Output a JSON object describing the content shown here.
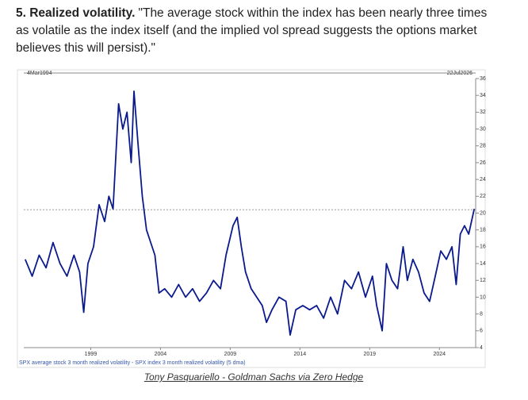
{
  "paragraph": {
    "lead": "5. Realized volatility.",
    "text": "\"The average stock within the index has been nearly three times as volatile as the index itself (and the implied vol spread suggests the options market believes this will persist).\""
  },
  "chart_data": {
    "type": "line",
    "start_label": "4Mar1994",
    "end_label": "22Jul2026",
    "footnote": "SPX average stock 3 month realized volatility - SPX index 3 month realized volatility (5 dma)",
    "x": [
      1994.3,
      1994.8,
      1995.3,
      1995.8,
      1996.3,
      1996.8,
      1997.3,
      1997.8,
      1998.2,
      1998.5,
      1998.8,
      1999.2,
      1999.6,
      2000.0,
      2000.3,
      2000.6,
      2001.0,
      2001.3,
      2001.6,
      2001.9,
      2002.1,
      2002.4,
      2002.7,
      2003.0,
      2003.3,
      2003.6,
      2003.9,
      2004.3,
      2004.8,
      2005.3,
      2005.8,
      2006.3,
      2006.8,
      2007.3,
      2007.8,
      2008.3,
      2008.7,
      2009.2,
      2009.5,
      2009.8,
      2010.1,
      2010.5,
      2010.9,
      2011.3,
      2011.6,
      2012.0,
      2012.5,
      2013.0,
      2013.3,
      2013.7,
      2014.2,
      2014.7,
      2015.2,
      2015.7,
      2016.2,
      2016.7,
      2017.2,
      2017.7,
      2018.2,
      2018.7,
      2019.2,
      2019.5,
      2019.9,
      2020.2,
      2020.6,
      2021.0,
      2021.4,
      2021.7,
      2022.1,
      2022.5,
      2022.9,
      2023.3,
      2023.7,
      2024.1,
      2024.5,
      2024.9,
      2025.2,
      2025.5,
      2025.8,
      2026.1,
      2026.5
    ],
    "series": [
      {
        "color": "#0a1a8c",
        "values": [
          14.5,
          12.5,
          15,
          13.5,
          16.5,
          14,
          12.5,
          15,
          13,
          8.2,
          14,
          16,
          21,
          19,
          22,
          20.5,
          33,
          30,
          32,
          26,
          34.5,
          28,
          22,
          18,
          16.5,
          15,
          10.5,
          11,
          10,
          11.5,
          10,
          11,
          9.5,
          10.5,
          12,
          11,
          15,
          18.5,
          19.5,
          16,
          13,
          11,
          10,
          9,
          7,
          8.5,
          10,
          9.5,
          5.5,
          8.5,
          9,
          8.5,
          9,
          7.5,
          10,
          8,
          12,
          11,
          13,
          10,
          12.5,
          9,
          6,
          14,
          12,
          11,
          16,
          12,
          14.5,
          13,
          10.5,
          9.5,
          12.5,
          15.5,
          14.5,
          16,
          11.5,
          17.5,
          18.5,
          17.5,
          20.5
        ]
      }
    ],
    "hline": 20.4,
    "xlim": [
      1994.2,
      2026.6
    ],
    "xticks": [
      1999,
      2004,
      2009,
      2014,
      2019,
      2024
    ],
    "ylim": [
      4,
      36
    ],
    "yticks": [
      4,
      6,
      8,
      10,
      12,
      14,
      16,
      18,
      20,
      22,
      24,
      26,
      28,
      30,
      32,
      34,
      36
    ]
  },
  "caption": "Tony Pasquariello - Goldman Sachs via Zero Hedge"
}
